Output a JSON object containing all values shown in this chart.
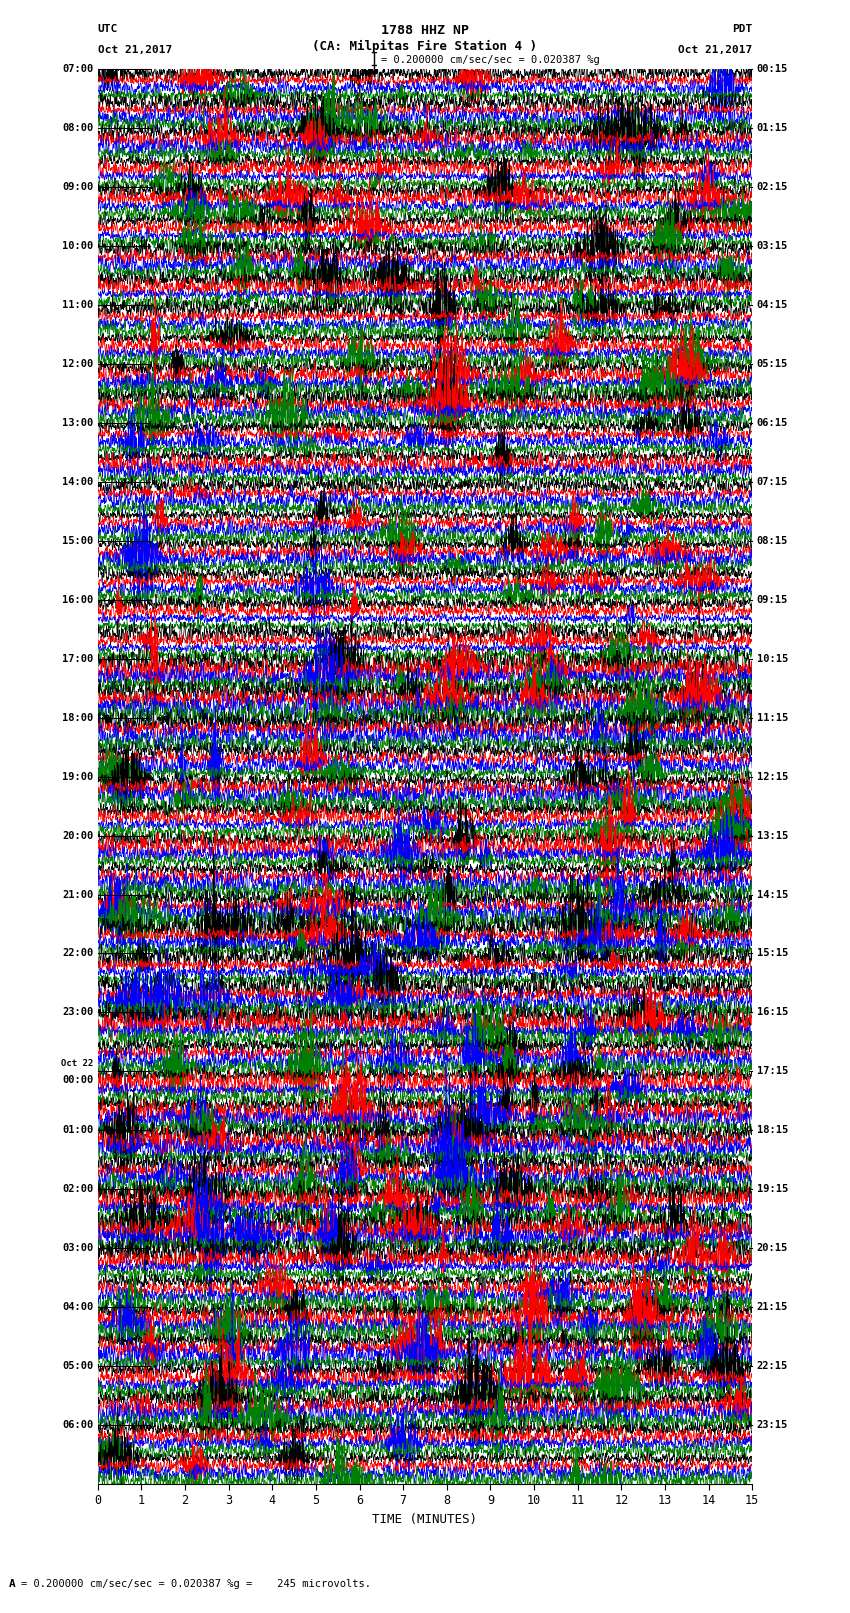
{
  "title_line1": "1788 HHZ NP",
  "title_line2": "(CA: Milpitas Fire Station 4 )",
  "utc_label": "UTC",
  "utc_date": "Oct 21,2017",
  "pdt_label": "PDT",
  "pdt_date": "Oct 21,2017",
  "scale_text": "= 0.200000 cm/sec/sec = 0.020387 %g =    245 microvolts.",
  "xlabel": "TIME (MINUTES)",
  "bottom_note": "A",
  "xlim": [
    0,
    15
  ],
  "xticks": [
    0,
    1,
    2,
    3,
    4,
    5,
    6,
    7,
    8,
    9,
    10,
    11,
    12,
    13,
    14,
    15
  ],
  "background_color": "#ffffff",
  "trace_colors": [
    "black",
    "red",
    "blue",
    "green"
  ],
  "fig_width": 8.5,
  "fig_height": 16.13,
  "traces_per_row": 4,
  "num_rows": 48,
  "left_tick_times": [
    "07:00",
    "08:00",
    "09:00",
    "10:00",
    "11:00",
    "12:00",
    "13:00",
    "14:00",
    "15:00",
    "16:00",
    "17:00",
    "18:00",
    "19:00",
    "20:00",
    "21:00",
    "22:00",
    "23:00",
    "Oct 22\n00:00",
    "01:00",
    "02:00",
    "03:00",
    "04:00",
    "05:00",
    "06:00"
  ],
  "right_tick_times": [
    "00:15",
    "01:15",
    "02:15",
    "03:15",
    "04:15",
    "05:15",
    "06:15",
    "07:15",
    "08:15",
    "09:15",
    "10:15",
    "11:15",
    "12:15",
    "13:15",
    "14:15",
    "15:15",
    "16:15",
    "17:15",
    "18:15",
    "19:15",
    "20:15",
    "21:15",
    "22:15",
    "23:15"
  ],
  "grid_color": "#888888"
}
